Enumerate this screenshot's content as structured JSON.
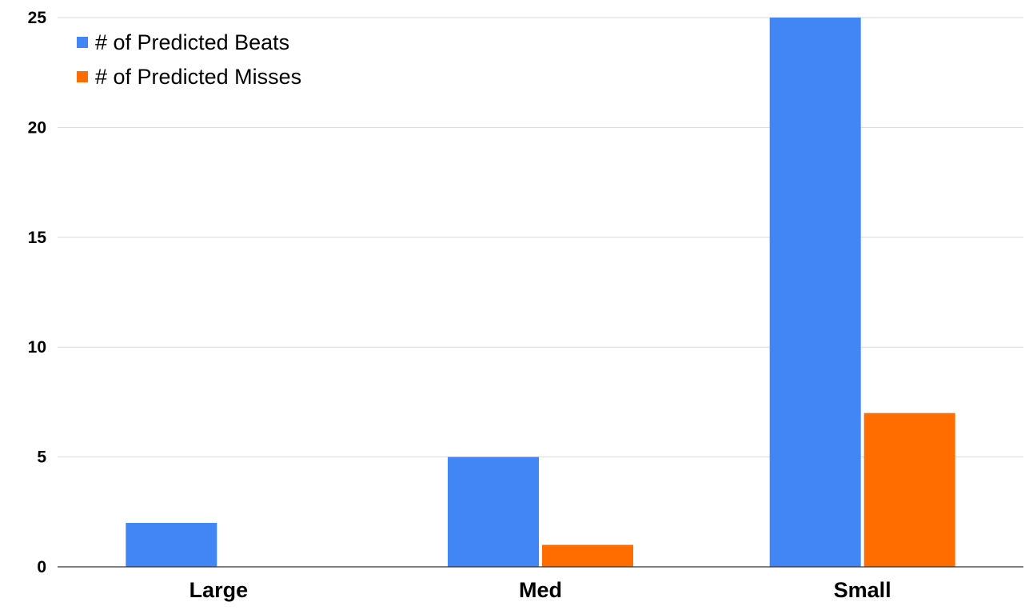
{
  "chart_data": {
    "type": "bar",
    "categories": [
      "Large",
      "Med",
      "Small"
    ],
    "series": [
      {
        "name": "# of Predicted Beats",
        "color": "#4285F4",
        "values": [
          2,
          5,
          25
        ]
      },
      {
        "name": "# of Predicted Misses",
        "color": "#FF6D01",
        "values": [
          0,
          1,
          7
        ]
      }
    ],
    "ylim": [
      0,
      25
    ],
    "yticks": [
      0,
      5,
      10,
      15,
      20,
      25
    ],
    "title": "",
    "xlabel": "",
    "ylabel": "",
    "grid": true,
    "legend_position": "top-left"
  }
}
